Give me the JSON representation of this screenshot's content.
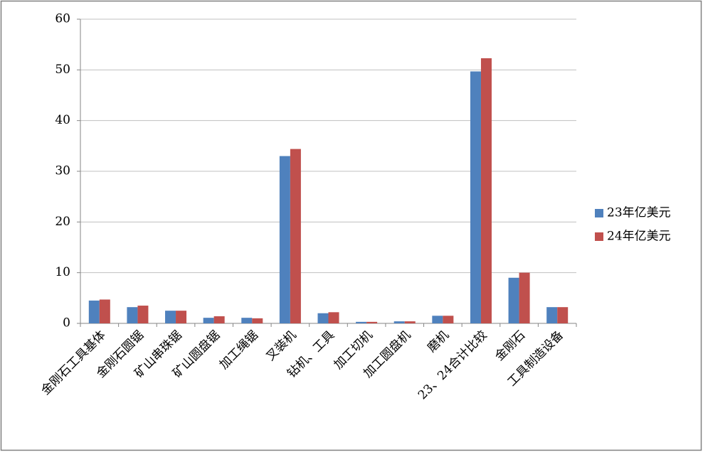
{
  "chart_data": {
    "type": "bar",
    "categories": [
      "金刚石工具基体",
      "金刚石圆锯",
      "矿山串珠锯",
      "矿山圆盘锯",
      "加工绳锯",
      "叉装机",
      "钻机、工具",
      "加工切机",
      "加工圆盘机",
      "磨机",
      "23、24合计比较",
      "金刚石",
      "工具制造设备"
    ],
    "series": [
      {
        "name": "23年亿美元",
        "color": "#4f81bd",
        "values": [
          4.5,
          3.2,
          2.5,
          1.1,
          1.1,
          33.0,
          2.0,
          0.3,
          0.4,
          1.5,
          49.7,
          9.0,
          3.2
        ]
      },
      {
        "name": "24年亿美元",
        "color": "#c0504d",
        "values": [
          4.7,
          3.5,
          2.5,
          1.4,
          1.0,
          34.4,
          2.2,
          0.3,
          0.4,
          1.5,
          52.3,
          10.0,
          3.2
        ]
      }
    ],
    "ylim": [
      0,
      60
    ],
    "yticks": [
      0,
      10,
      20,
      30,
      40,
      50,
      60
    ],
    "grid": true,
    "legend": "right"
  }
}
